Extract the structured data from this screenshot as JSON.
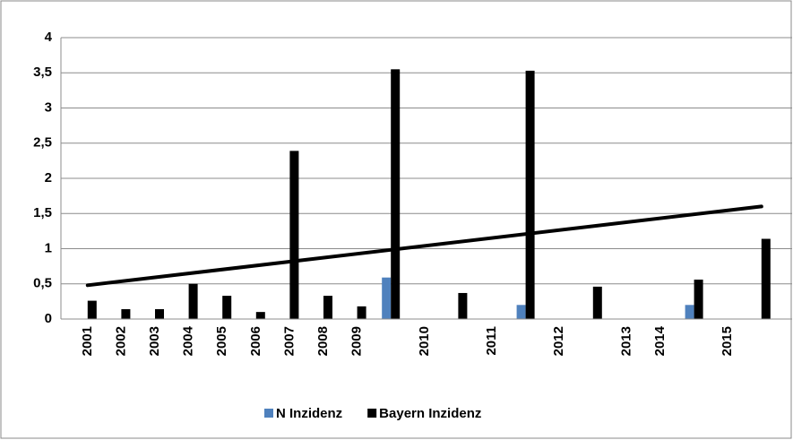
{
  "chart_data": {
    "type": "bar",
    "categories": [
      "2001",
      "2002",
      "2003",
      "2004",
      "2005",
      "2006",
      "2007",
      "2008",
      "2009",
      null,
      "2010",
      null,
      "2011",
      null,
      "2012",
      null,
      "2013",
      "2014",
      null,
      "2015",
      null
    ],
    "series": [
      {
        "name": "N Inzidenz",
        "color": "#4f81bd",
        "values": [
          null,
          null,
          null,
          null,
          null,
          null,
          null,
          null,
          null,
          0.59,
          null,
          null,
          null,
          0.2,
          null,
          null,
          null,
          null,
          0.2,
          null,
          null
        ]
      },
      {
        "name": "Bayern Inzidenz",
        "color": "#000000",
        "values": [
          0.26,
          0.14,
          0.14,
          0.5,
          0.33,
          0.1,
          2.39,
          0.33,
          0.18,
          3.55,
          null,
          0.37,
          null,
          3.53,
          null,
          0.46,
          null,
          null,
          0.56,
          null,
          1.14
        ]
      }
    ],
    "trendline": {
      "color": "#000000",
      "values": [
        0.48,
        1.6
      ]
    },
    "ylim": [
      0,
      4
    ],
    "yticks": [
      0,
      {
        "value": 0.5,
        "label": "0,5"
      },
      1,
      {
        "value": 1.5,
        "label": "1,5"
      },
      2,
      {
        "value": 2.5,
        "label": "2,5"
      },
      3,
      {
        "value": 3.5,
        "label": "3,5"
      },
      4
    ],
    "grid": true,
    "legend": "bottom"
  }
}
